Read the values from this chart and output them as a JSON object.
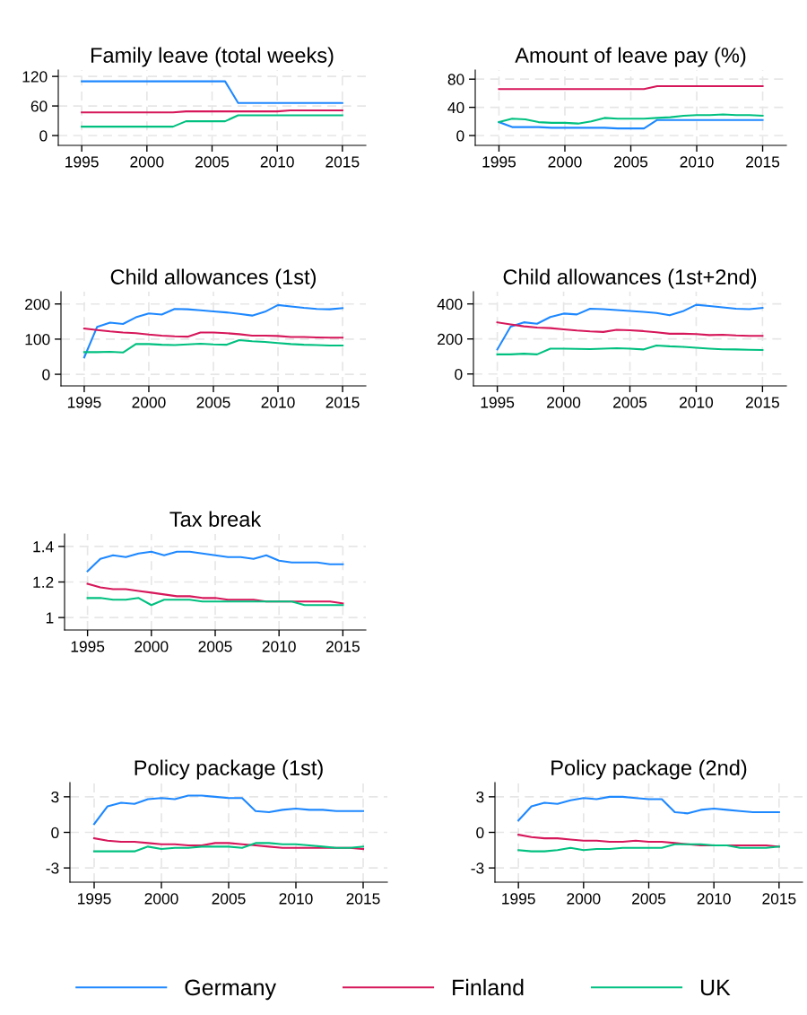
{
  "chart_data": [
    {
      "type": "line",
      "title": "Family leave (total weeks)",
      "x": [
        1995,
        1996,
        1997,
        1998,
        1999,
        2000,
        2001,
        2002,
        2003,
        2004,
        2005,
        2006,
        2007,
        2008,
        2009,
        2010,
        2011,
        2012,
        2013,
        2014,
        2015
      ],
      "xlim": [
        1993.2,
        2016.8
      ],
      "xticks": [
        1995,
        2000,
        2005,
        2010,
        2015
      ],
      "ylim": [
        -20,
        133
      ],
      "yticks": [
        0,
        60,
        120
      ],
      "grid": true,
      "marker": "none",
      "line_style": "solid",
      "legend": "bottom",
      "series": [
        {
          "name": "Germany",
          "color": "#1e88ff",
          "values": [
            110,
            110,
            110,
            110,
            110,
            110,
            110,
            110,
            110,
            110,
            110,
            110,
            66,
            66,
            66,
            66,
            66,
            66,
            66,
            66,
            66
          ]
        },
        {
          "name": "Finland",
          "color": "#d6175a",
          "values": [
            47,
            47,
            47,
            47,
            47,
            47,
            47,
            47,
            49,
            49,
            49,
            49,
            49,
            49,
            49,
            49,
            51,
            51,
            51,
            51,
            51
          ]
        },
        {
          "name": "UK",
          "color": "#00c080",
          "values": [
            18,
            18,
            18,
            18,
            18,
            18,
            18,
            18,
            29,
            29,
            29,
            29,
            41,
            41,
            41,
            41,
            41,
            41,
            41,
            41,
            41
          ]
        }
      ]
    },
    {
      "type": "line",
      "title": "Amount of leave pay (%)",
      "x": [
        1995,
        1996,
        1997,
        1998,
        1999,
        2000,
        2001,
        2002,
        2003,
        2004,
        2005,
        2006,
        2007,
        2008,
        2009,
        2010,
        2011,
        2012,
        2013,
        2014,
        2015
      ],
      "xlim": [
        1993.2,
        2016.8
      ],
      "xticks": [
        1995,
        2000,
        2005,
        2010,
        2015
      ],
      "ylim": [
        -14,
        93
      ],
      "yticks": [
        0,
        40,
        80
      ],
      "grid": true,
      "marker": "none",
      "line_style": "solid",
      "series": [
        {
          "color": "#1e88ff",
          "values": [
            19,
            12,
            12,
            12,
            11,
            11,
            11,
            11,
            11,
            10,
            10,
            10,
            22,
            22,
            22,
            22,
            22,
            22,
            22,
            22,
            22
          ]
        },
        {
          "color": "#d6175a",
          "values": [
            66,
            66,
            66,
            66,
            66,
            66,
            66,
            66,
            66,
            66,
            66,
            66,
            70,
            70,
            70,
            70,
            70,
            70,
            70,
            70,
            70
          ]
        },
        {
          "color": "#00c080",
          "values": [
            19,
            24,
            23,
            19,
            18,
            18,
            17,
            20,
            25,
            24,
            24,
            24,
            25,
            26,
            28,
            29,
            29,
            30,
            29,
            29,
            28
          ]
        }
      ]
    },
    {
      "type": "line",
      "title": "Child allowances (1st)",
      "x": [
        1995,
        1996,
        1997,
        1998,
        1999,
        2000,
        2001,
        2002,
        2003,
        2004,
        2005,
        2006,
        2007,
        2008,
        2009,
        2010,
        2011,
        2012,
        2013,
        2014,
        2015
      ],
      "xlim": [
        1993.2,
        2016.8
      ],
      "xticks": [
        1995,
        2000,
        2005,
        2010,
        2015
      ],
      "ylim": [
        -33,
        235
      ],
      "yticks": [
        0,
        100,
        200
      ],
      "grid": true,
      "marker": "none",
      "line_style": "solid",
      "series": [
        {
          "color": "#1e88ff",
          "values": [
            48,
            135,
            147,
            143,
            162,
            173,
            170,
            186,
            185,
            182,
            179,
            176,
            172,
            167,
            178,
            197,
            193,
            189,
            186,
            185,
            188
          ]
        },
        {
          "color": "#d6175a",
          "values": [
            130,
            126,
            122,
            119,
            117,
            113,
            110,
            108,
            107,
            119,
            119,
            117,
            114,
            110,
            110,
            109,
            106,
            106,
            105,
            104,
            104
          ]
        },
        {
          "color": "#00c080",
          "values": [
            63,
            63,
            64,
            62,
            86,
            86,
            84,
            83,
            85,
            87,
            85,
            84,
            97,
            94,
            92,
            89,
            86,
            84,
            83,
            82,
            82
          ]
        }
      ]
    },
    {
      "type": "line",
      "title": "Child allowances (1st+2nd)",
      "x": [
        1995,
        1996,
        1997,
        1998,
        1999,
        2000,
        2001,
        2002,
        2003,
        2004,
        2005,
        2006,
        2007,
        2008,
        2009,
        2010,
        2011,
        2012,
        2013,
        2014,
        2015
      ],
      "xlim": [
        1993.2,
        2016.8
      ],
      "xticks": [
        1995,
        2000,
        2005,
        2010,
        2015
      ],
      "ylim": [
        -68,
        470
      ],
      "yticks": [
        0,
        200,
        400
      ],
      "grid": true,
      "marker": "none",
      "line_style": "solid",
      "series": [
        {
          "color": "#1e88ff",
          "values": [
            140,
            270,
            295,
            287,
            325,
            345,
            340,
            373,
            370,
            365,
            360,
            355,
            348,
            335,
            358,
            395,
            388,
            380,
            373,
            370,
            377
          ]
        },
        {
          "color": "#d6175a",
          "values": [
            295,
            283,
            272,
            265,
            262,
            255,
            248,
            243,
            240,
            252,
            250,
            245,
            238,
            230,
            230,
            228,
            222,
            224,
            220,
            218,
            218
          ]
        },
        {
          "color": "#00c080",
          "values": [
            112,
            112,
            116,
            112,
            145,
            145,
            143,
            142,
            145,
            147,
            145,
            140,
            163,
            158,
            155,
            150,
            145,
            141,
            140,
            138,
            137
          ]
        }
      ]
    },
    {
      "type": "line",
      "title": "Tax break",
      "x": [
        1995,
        1996,
        1997,
        1998,
        1999,
        2000,
        2001,
        2002,
        2003,
        2004,
        2005,
        2006,
        2007,
        2008,
        2009,
        2010,
        2011,
        2012,
        2013,
        2014,
        2015
      ],
      "xlim": [
        1993.2,
        2016.8
      ],
      "xticks": [
        1995,
        2000,
        2005,
        2010,
        2015
      ],
      "ylim": [
        0.93,
        1.47
      ],
      "yticks": [
        {
          "value": 1,
          "label": "1"
        },
        {
          "value": 1.2,
          "label": "1.2"
        },
        {
          "value": 1.4,
          "label": "1.4"
        }
      ],
      "grid": true,
      "marker": "none",
      "line_style": "solid",
      "series": [
        {
          "color": "#1e88ff",
          "values": [
            1.26,
            1.33,
            1.35,
            1.34,
            1.36,
            1.37,
            1.35,
            1.37,
            1.37,
            1.36,
            1.35,
            1.34,
            1.34,
            1.33,
            1.35,
            1.32,
            1.31,
            1.31,
            1.31,
            1.3,
            1.3
          ]
        },
        {
          "color": "#d6175a",
          "values": [
            1.19,
            1.17,
            1.16,
            1.16,
            1.15,
            1.14,
            1.13,
            1.12,
            1.12,
            1.11,
            1.11,
            1.1,
            1.1,
            1.1,
            1.09,
            1.09,
            1.09,
            1.09,
            1.09,
            1.09,
            1.08
          ]
        },
        {
          "color": "#00c080",
          "values": [
            1.11,
            1.11,
            1.1,
            1.1,
            1.11,
            1.07,
            1.1,
            1.1,
            1.1,
            1.09,
            1.09,
            1.09,
            1.09,
            1.09,
            1.09,
            1.09,
            1.09,
            1.07,
            1.07,
            1.07,
            1.07
          ]
        }
      ]
    },
    {
      "type": "line",
      "title": "Policy package (1st)",
      "x": [
        1995,
        1996,
        1997,
        1998,
        1999,
        2000,
        2001,
        2002,
        2003,
        2004,
        2005,
        2006,
        2007,
        2008,
        2009,
        2010,
        2011,
        2012,
        2013,
        2014,
        2015
      ],
      "xlim": [
        1993.2,
        2016.8
      ],
      "xticks": [
        1995,
        2000,
        2005,
        2010,
        2015
      ],
      "ylim": [
        -4.2,
        4.2
      ],
      "yticks": [
        {
          "value": -3,
          "label": "-3"
        },
        0,
        3
      ],
      "grid": true,
      "marker": "none",
      "line_style": "solid",
      "series": [
        {
          "color": "#1e88ff",
          "values": [
            0.7,
            2.2,
            2.5,
            2.4,
            2.8,
            2.9,
            2.8,
            3.1,
            3.1,
            3.0,
            2.9,
            2.9,
            1.8,
            1.7,
            1.9,
            2.0,
            1.9,
            1.9,
            1.8,
            1.8,
            1.8
          ]
        },
        {
          "color": "#d6175a",
          "values": [
            -0.5,
            -0.7,
            -0.8,
            -0.8,
            -0.9,
            -1.0,
            -1.0,
            -1.1,
            -1.1,
            -0.9,
            -0.9,
            -1.0,
            -1.1,
            -1.2,
            -1.3,
            -1.3,
            -1.3,
            -1.3,
            -1.3,
            -1.3,
            -1.4
          ]
        },
        {
          "color": "#00c080",
          "values": [
            -1.6,
            -1.6,
            -1.6,
            -1.6,
            -1.2,
            -1.4,
            -1.3,
            -1.3,
            -1.2,
            -1.2,
            -1.2,
            -1.3,
            -0.9,
            -0.9,
            -1.0,
            -1.0,
            -1.1,
            -1.2,
            -1.3,
            -1.3,
            -1.2
          ]
        }
      ]
    },
    {
      "type": "line",
      "title": "Policy package (2nd)",
      "x": [
        1995,
        1996,
        1997,
        1998,
        1999,
        2000,
        2001,
        2002,
        2003,
        2004,
        2005,
        2006,
        2007,
        2008,
        2009,
        2010,
        2011,
        2012,
        2013,
        2014,
        2015
      ],
      "xlim": [
        1993.2,
        2016.8
      ],
      "xticks": [
        1995,
        2000,
        2005,
        2010,
        2015
      ],
      "ylim": [
        -4.2,
        4.2
      ],
      "yticks": [
        {
          "value": -3,
          "label": "-3"
        },
        0,
        3
      ],
      "grid": true,
      "marker": "none",
      "line_style": "solid",
      "series": [
        {
          "color": "#1e88ff",
          "values": [
            1.0,
            2.2,
            2.5,
            2.4,
            2.7,
            2.9,
            2.8,
            3.0,
            3.0,
            2.9,
            2.8,
            2.8,
            1.7,
            1.6,
            1.9,
            2.0,
            1.9,
            1.8,
            1.7,
            1.7,
            1.7
          ]
        },
        {
          "color": "#d6175a",
          "values": [
            -0.2,
            -0.4,
            -0.5,
            -0.5,
            -0.6,
            -0.7,
            -0.7,
            -0.8,
            -0.8,
            -0.7,
            -0.8,
            -0.8,
            -0.9,
            -1.0,
            -1.1,
            -1.1,
            -1.1,
            -1.1,
            -1.1,
            -1.1,
            -1.2
          ]
        },
        {
          "color": "#00c080",
          "values": [
            -1.5,
            -1.6,
            -1.6,
            -1.5,
            -1.3,
            -1.5,
            -1.4,
            -1.4,
            -1.3,
            -1.3,
            -1.3,
            -1.3,
            -1.0,
            -1.0,
            -1.0,
            -1.1,
            -1.1,
            -1.3,
            -1.3,
            -1.3,
            -1.2
          ]
        }
      ]
    }
  ]
}
